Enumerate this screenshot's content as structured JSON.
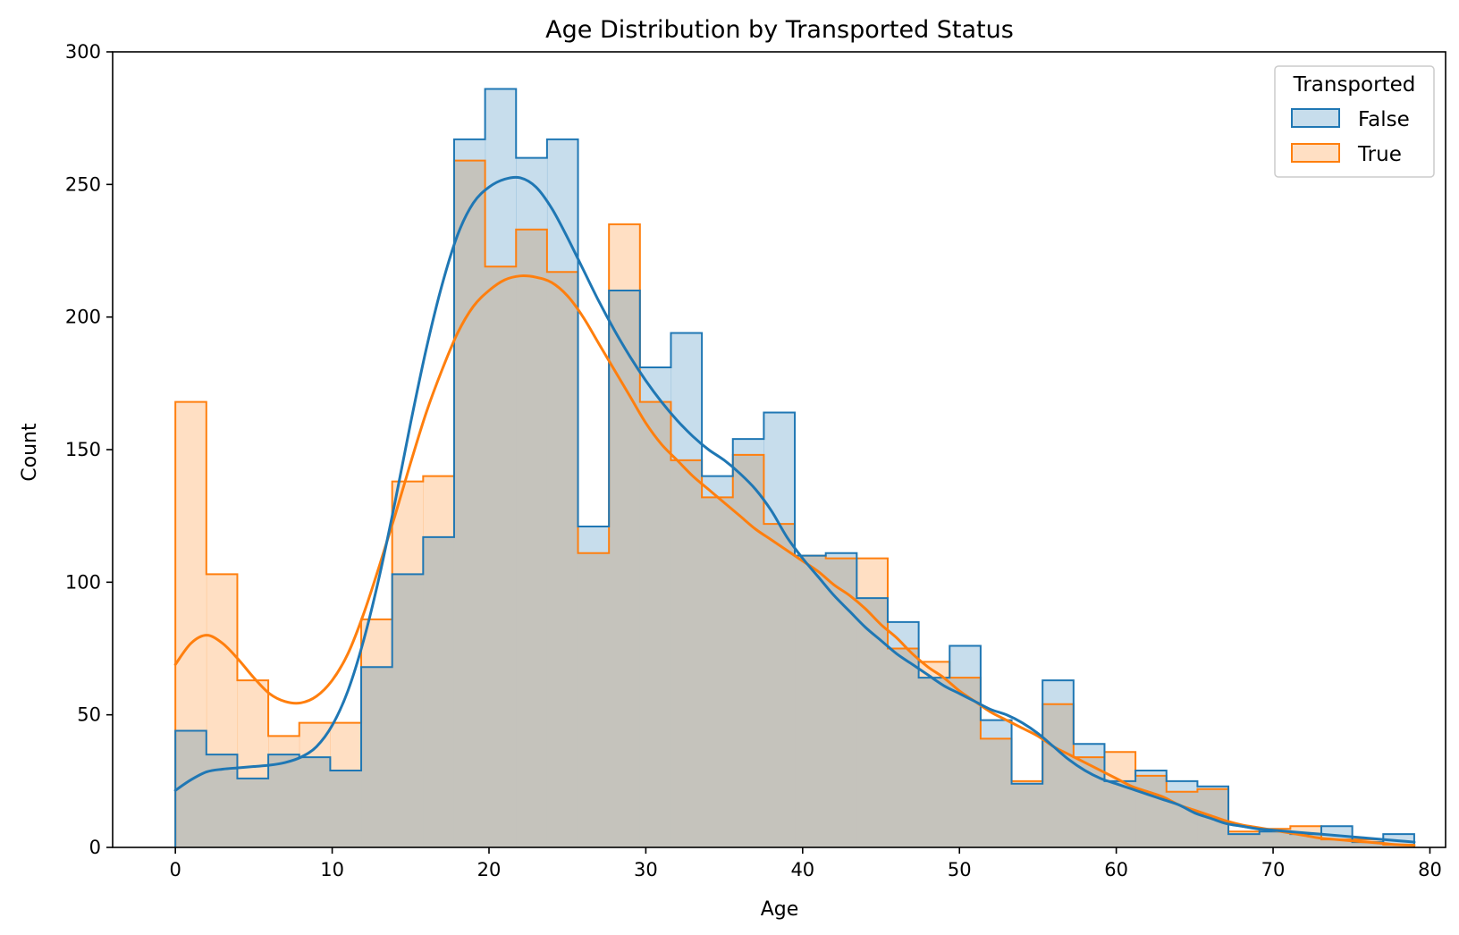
{
  "chart_data": {
    "type": "histogram",
    "title": "Age Distribution by Transported Status",
    "xlabel": "Age",
    "ylabel": "Count",
    "xlim": [
      -4,
      81
    ],
    "ylim": [
      0,
      300
    ],
    "xticks": [
      0,
      10,
      20,
      30,
      40,
      50,
      60,
      70,
      80
    ],
    "yticks": [
      0,
      50,
      100,
      150,
      200,
      250,
      300
    ],
    "bin_edges": [
      0,
      1.975,
      3.95,
      5.925,
      7.9,
      9.875,
      11.85,
      13.825,
      15.8,
      17.775,
      19.75,
      21.725,
      23.7,
      25.675,
      27.65,
      29.625,
      31.6,
      33.575,
      35.55,
      37.525,
      39.5,
      41.475,
      43.45,
      45.425,
      47.4,
      49.375,
      51.35,
      53.325,
      55.3,
      57.275,
      59.25,
      61.225,
      63.2,
      65.175,
      67.15,
      69.125,
      71.1,
      73.075,
      75.05,
      77.025,
      79
    ],
    "grid": false,
    "legend": {
      "title": "Transported",
      "placement": "top-right"
    },
    "colors": {
      "False": "#1f77b4",
      "True": "#ff7f0e",
      "overlap": "#c5c3bc"
    },
    "series": [
      {
        "name": "False",
        "counts": [
          44,
          35,
          26,
          35,
          34,
          29,
          68,
          103,
          117,
          267,
          286,
          260,
          267,
          121,
          210,
          181,
          194,
          140,
          154,
          164,
          110,
          111,
          94,
          85,
          64,
          76,
          48,
          24,
          63,
          39,
          25,
          29,
          25,
          23,
          5,
          6,
          5,
          8,
          2,
          5
        ],
        "kde": [
          [
            0,
            21.5
          ],
          [
            1,
            25.5
          ],
          [
            2,
            28.5
          ],
          [
            3,
            29.5
          ],
          [
            4,
            30
          ],
          [
            5,
            30.5
          ],
          [
            6,
            31
          ],
          [
            7,
            32
          ],
          [
            8,
            34
          ],
          [
            9,
            38
          ],
          [
            10,
            46
          ],
          [
            11,
            59
          ],
          [
            12,
            78
          ],
          [
            13,
            102
          ],
          [
            14,
            130
          ],
          [
            15,
            160
          ],
          [
            16,
            188
          ],
          [
            17,
            212
          ],
          [
            18,
            231
          ],
          [
            19,
            243
          ],
          [
            20,
            249
          ],
          [
            21,
            252
          ],
          [
            22,
            252.5
          ],
          [
            23,
            249
          ],
          [
            24,
            241
          ],
          [
            25,
            230
          ],
          [
            26,
            218
          ],
          [
            27,
            206
          ],
          [
            28,
            195
          ],
          [
            29,
            185
          ],
          [
            30,
            176
          ],
          [
            31,
            168
          ],
          [
            32,
            161
          ],
          [
            33,
            155
          ],
          [
            34,
            150
          ],
          [
            35,
            146
          ],
          [
            36,
            141
          ],
          [
            37,
            135
          ],
          [
            38,
            127
          ],
          [
            39,
            117
          ],
          [
            40,
            109
          ],
          [
            41,
            102
          ],
          [
            42,
            95
          ],
          [
            43,
            89
          ],
          [
            44,
            83
          ],
          [
            45,
            78
          ],
          [
            46,
            73
          ],
          [
            47,
            69
          ],
          [
            48,
            65
          ],
          [
            49,
            61
          ],
          [
            50,
            58
          ],
          [
            51,
            55
          ],
          [
            52,
            52
          ],
          [
            53,
            50
          ],
          [
            54,
            47
          ],
          [
            55,
            43
          ],
          [
            56,
            38
          ],
          [
            57,
            33
          ],
          [
            58,
            29
          ],
          [
            59,
            26
          ],
          [
            60,
            24
          ],
          [
            61,
            22
          ],
          [
            62,
            20
          ],
          [
            63,
            18
          ],
          [
            64,
            16
          ],
          [
            65,
            13
          ],
          [
            66,
            11
          ],
          [
            67,
            9
          ],
          [
            68,
            8
          ],
          [
            69,
            7
          ],
          [
            70,
            6.5
          ],
          [
            71,
            6
          ],
          [
            72,
            5.5
          ],
          [
            73,
            5
          ],
          [
            74,
            4.5
          ],
          [
            75,
            4
          ],
          [
            76,
            3.5
          ],
          [
            77,
            3
          ],
          [
            78,
            2.5
          ],
          [
            79,
            2
          ]
        ]
      },
      {
        "name": "True",
        "counts": [
          168,
          103,
          63,
          42,
          47,
          47,
          86,
          138,
          140,
          259,
          219,
          233,
          217,
          111,
          235,
          168,
          146,
          132,
          148,
          122,
          110,
          109,
          109,
          75,
          70,
          64,
          41,
          25,
          54,
          34,
          36,
          27,
          21,
          22,
          6,
          7,
          8,
          3,
          3,
          1
        ],
        "kde": [
          [
            0,
            69
          ],
          [
            1,
            77
          ],
          [
            2,
            80
          ],
          [
            3,
            77
          ],
          [
            4,
            71
          ],
          [
            5,
            64
          ],
          [
            6,
            58
          ],
          [
            7,
            55
          ],
          [
            8,
            54.5
          ],
          [
            9,
            57
          ],
          [
            10,
            63
          ],
          [
            11,
            73
          ],
          [
            12,
            88
          ],
          [
            13,
            106
          ],
          [
            14,
            125
          ],
          [
            15,
            145
          ],
          [
            16,
            164
          ],
          [
            17,
            180
          ],
          [
            18,
            194
          ],
          [
            19,
            204
          ],
          [
            20,
            210
          ],
          [
            21,
            214
          ],
          [
            22,
            215.5
          ],
          [
            23,
            215
          ],
          [
            24,
            213
          ],
          [
            25,
            208
          ],
          [
            26,
            200
          ],
          [
            27,
            190
          ],
          [
            28,
            180
          ],
          [
            29,
            170
          ],
          [
            30,
            160
          ],
          [
            31,
            152
          ],
          [
            32,
            146
          ],
          [
            33,
            140
          ],
          [
            34,
            135
          ],
          [
            35,
            130
          ],
          [
            36,
            125
          ],
          [
            37,
            120
          ],
          [
            38,
            116
          ],
          [
            39,
            112
          ],
          [
            40,
            108
          ],
          [
            41,
            104
          ],
          [
            42,
            99
          ],
          [
            43,
            95
          ],
          [
            44,
            90
          ],
          [
            45,
            84
          ],
          [
            46,
            79
          ],
          [
            47,
            73
          ],
          [
            48,
            68
          ],
          [
            49,
            64
          ],
          [
            50,
            59
          ],
          [
            51,
            55
          ],
          [
            52,
            51
          ],
          [
            53,
            48
          ],
          [
            54,
            45
          ],
          [
            55,
            42
          ],
          [
            56,
            38
          ],
          [
            57,
            35
          ],
          [
            58,
            32
          ],
          [
            59,
            29
          ],
          [
            60,
            26
          ],
          [
            61,
            23
          ],
          [
            62,
            21
          ],
          [
            63,
            19
          ],
          [
            64,
            16
          ],
          [
            65,
            14
          ],
          [
            66,
            12
          ],
          [
            67,
            10
          ],
          [
            68,
            8.5
          ],
          [
            69,
            7.5
          ],
          [
            70,
            6.5
          ],
          [
            71,
            5.5
          ],
          [
            72,
            4.5
          ],
          [
            73,
            3.5
          ],
          [
            74,
            3
          ],
          [
            75,
            2.5
          ],
          [
            76,
            2
          ],
          [
            77,
            1.5
          ],
          [
            78,
            1
          ],
          [
            79,
            0.8
          ]
        ]
      }
    ]
  }
}
